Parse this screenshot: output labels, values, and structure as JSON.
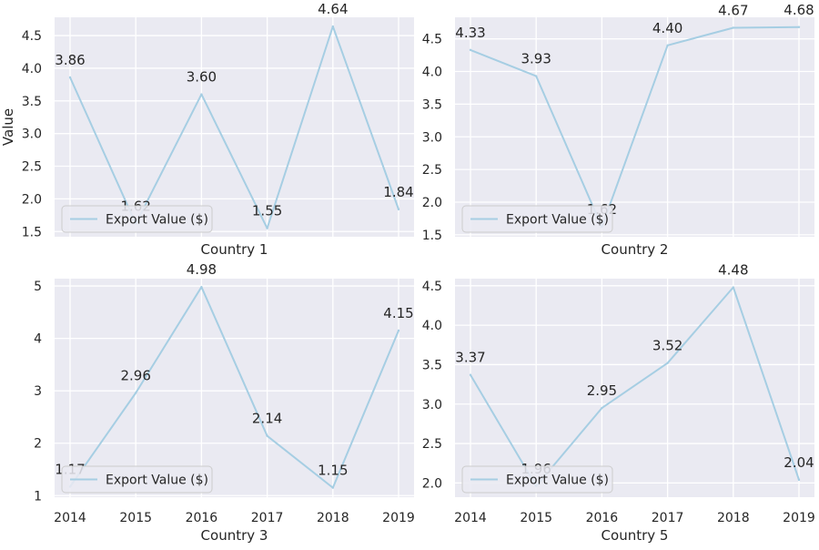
{
  "style": {
    "background": "#ffffff",
    "plot_background": "#eaeaf2",
    "grid_color": "#ffffff",
    "line_color": "#a6cee3",
    "text_color": "#262626",
    "legend_background": "#eaeaf2",
    "legend_border": "#cccccc"
  },
  "chart_data": [
    {
      "type": "line",
      "xlabel": "Country 1",
      "ylabel": "Value",
      "categories": [
        "2014",
        "2015",
        "2016",
        "2017",
        "2018",
        "2019"
      ],
      "yticks": [
        "1.5",
        "2.0",
        "2.5",
        "3.0",
        "3.5",
        "4.0",
        "4.5"
      ],
      "ylim": [
        1.42,
        4.78
      ],
      "show_xticks": false,
      "grid": true,
      "legend": "lower-left",
      "series": [
        {
          "name": "Export Value ($)",
          "values": [
            3.86,
            1.62,
            3.6,
            1.55,
            4.64,
            1.84
          ],
          "labels": [
            "3.86",
            "1.62",
            "3.60",
            "1.55",
            "4.64",
            "1.84"
          ]
        }
      ]
    },
    {
      "type": "line",
      "xlabel": "Country 2",
      "ylabel": "",
      "categories": [
        "2014",
        "2015",
        "2016",
        "2017",
        "2018",
        "2019"
      ],
      "yticks": [
        "1.5",
        "2.0",
        "2.5",
        "3.0",
        "3.5",
        "4.0",
        "4.5"
      ],
      "ylim": [
        1.47,
        4.83
      ],
      "show_xticks": false,
      "grid": true,
      "legend": "lower-left",
      "series": [
        {
          "name": "Export Value ($)",
          "values": [
            4.33,
            3.93,
            1.62,
            4.4,
            4.67,
            4.68
          ],
          "labels": [
            "4.33",
            "3.93",
            "1.62",
            "4.40",
            "4.67",
            "4.68"
          ]
        }
      ]
    },
    {
      "type": "line",
      "xlabel": "Country 3",
      "ylabel": "",
      "categories": [
        "2014",
        "2015",
        "2016",
        "2017",
        "2018",
        "2019"
      ],
      "yticks": [
        "1",
        "2",
        "3",
        "4",
        "5"
      ],
      "ylim": [
        0.97,
        5.14
      ],
      "show_xticks": true,
      "grid": true,
      "legend": "lower-left",
      "series": [
        {
          "name": "Export Value ($)",
          "values": [
            1.17,
            2.96,
            4.98,
            2.14,
            1.15,
            4.15
          ],
          "labels": [
            "1.17",
            "2.96",
            "4.98",
            "2.14",
            "1.15",
            "4.15"
          ]
        }
      ]
    },
    {
      "type": "line",
      "xlabel": "Country 5",
      "ylabel": "",
      "categories": [
        "2014",
        "2015",
        "2016",
        "2017",
        "2018",
        "2019"
      ],
      "yticks": [
        "2.0",
        "2.5",
        "3.0",
        "3.5",
        "4.0",
        "4.5"
      ],
      "ylim": [
        1.82,
        4.59
      ],
      "show_xticks": true,
      "grid": true,
      "legend": "lower-left",
      "series": [
        {
          "name": "Export Value ($)",
          "values": [
            3.37,
            1.96,
            2.95,
            3.52,
            4.48,
            2.04
          ],
          "labels": [
            "3.37",
            "1.96",
            "2.95",
            "3.52",
            "4.48",
            "2.04"
          ]
        }
      ]
    }
  ]
}
